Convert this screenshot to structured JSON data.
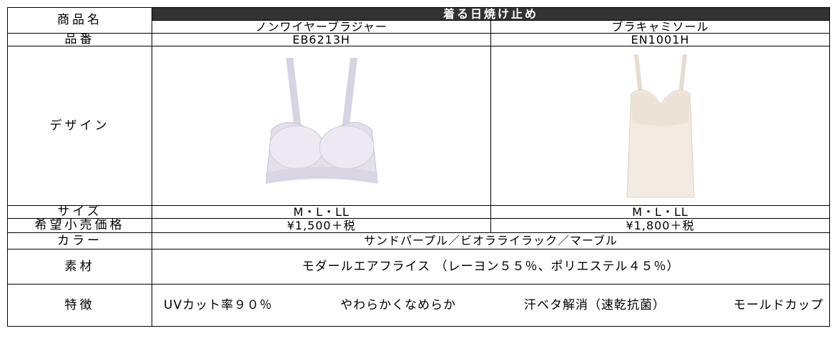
{
  "table": {
    "label_header": "商品名",
    "group_title": "着る日焼け止め",
    "products": [
      "ノンワイヤーブラジャー",
      "ブラキャミソール"
    ],
    "rows": [
      {
        "label": "品番",
        "values": [
          "EB6213H",
          "EN1001H"
        ]
      },
      {
        "label": "デザイン"
      },
      {
        "label": "サイズ",
        "values": [
          "M・L・LL",
          "M・L・LL"
        ]
      },
      {
        "label": "希望小売価格",
        "values": [
          "¥1,500＋税",
          "¥1,800＋税"
        ]
      },
      {
        "label": "カラー",
        "value": "サンドパープル／ビオラライラック／マーブル"
      },
      {
        "label": "素材",
        "value": "モダールエアフライス （レーヨン５５％、ポリエステル４５％）"
      },
      {
        "label": "特徴",
        "items": [
          "UVカット率９０％",
          "やわらかくなめらか",
          "汗ベタ解消（速乾抗菌）",
          "モールドカップ"
        ]
      }
    ]
  }
}
